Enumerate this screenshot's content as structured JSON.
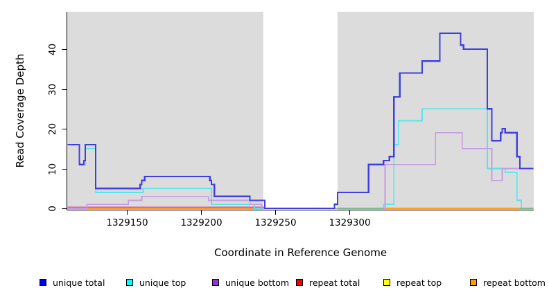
{
  "figure": {
    "xlabel": "Coordinate in Reference Genome",
    "ylabel": "Read Coverage Depth"
  },
  "chart_data": {
    "type": "line",
    "subtype": "step-coverage-pileup",
    "title": "",
    "xlabel": "Coordinate in Reference Genome",
    "ylabel": "Read Coverage Depth",
    "xlim": [
      1329110,
      1329424
    ],
    "ylim": [
      0,
      49
    ],
    "grid": false,
    "legend_position": "bottom",
    "panel_bg": "#dcdcdc",
    "outer_bg": "#ffffff",
    "axis_color": "#000000",
    "no_data_region": {
      "from": 1329242,
      "to": 1329292,
      "fill": "#ffffff"
    },
    "x_ticks": [
      {
        "label": "1329150",
        "coord": 1329150
      },
      {
        "label": "1329200",
        "coord": 1329200
      },
      {
        "label": "1329250",
        "coord": 1329250
      },
      {
        "label": "1329300",
        "coord": 1329300
      }
    ],
    "y_ticks": [
      {
        "label": "0",
        "value": 0
      },
      {
        "label": "10",
        "value": 10
      },
      {
        "label": "20",
        "value": 20
      },
      {
        "label": "30",
        "value": 30
      },
      {
        "label": "40",
        "value": 40
      }
    ],
    "series": [
      {
        "name": "unique total",
        "line_color": "#3f3fe0",
        "width": 2.2,
        "draw_index": 6,
        "steps": [
          [
            1329110,
            16
          ],
          [
            1329118,
            11
          ],
          [
            1329121,
            12
          ],
          [
            1329122,
            16
          ],
          [
            1329129,
            5
          ],
          [
            1329159,
            6
          ],
          [
            1329160,
            7
          ],
          [
            1329162,
            8
          ],
          [
            1329206,
            7
          ],
          [
            1329207,
            6
          ],
          [
            1329209,
            3
          ],
          [
            1329233,
            2
          ],
          [
            1329243,
            0
          ],
          [
            1329290,
            1
          ],
          [
            1329292,
            4
          ],
          [
            1329313,
            11
          ],
          [
            1329323,
            12
          ],
          [
            1329327,
            13
          ],
          [
            1329330,
            28
          ],
          [
            1329334,
            34
          ],
          [
            1329349,
            37
          ],
          [
            1329361,
            44
          ],
          [
            1329375,
            41
          ],
          [
            1329377,
            40
          ],
          [
            1329393,
            25
          ],
          [
            1329396,
            17
          ],
          [
            1329402,
            19
          ],
          [
            1329403,
            20
          ],
          [
            1329405,
            19
          ],
          [
            1329413,
            13
          ],
          [
            1329415,
            10
          ],
          [
            1329424,
            10
          ]
        ]
      },
      {
        "name": "unique top",
        "line_color": "#55e5ea",
        "width": 1.7,
        "draw_index": 4,
        "steps": [
          [
            1329110,
            16
          ],
          [
            1329118,
            11
          ],
          [
            1329122,
            15
          ],
          [
            1329129,
            4
          ],
          [
            1329161,
            5
          ],
          [
            1329207,
            1
          ],
          [
            1329236,
            0
          ],
          [
            1329323,
            1
          ],
          [
            1329330,
            16
          ],
          [
            1329333,
            22
          ],
          [
            1329349,
            25
          ],
          [
            1329393,
            10
          ],
          [
            1329405,
            9
          ],
          [
            1329413,
            2
          ],
          [
            1329416,
            0
          ],
          [
            1329424,
            0
          ]
        ]
      },
      {
        "name": "unique bottom",
        "line_color": "#c59ce2",
        "width": 1.7,
        "draw_index": 5,
        "steps": [
          [
            1329110,
            0
          ],
          [
            1329123,
            1
          ],
          [
            1329151,
            2
          ],
          [
            1329160,
            3
          ],
          [
            1329205,
            2
          ],
          [
            1329233,
            1
          ],
          [
            1329241,
            0
          ],
          [
            1329324,
            11
          ],
          [
            1329358,
            19
          ],
          [
            1329376,
            15
          ],
          [
            1329396,
            7
          ],
          [
            1329403,
            10
          ],
          [
            1329424,
            10
          ]
        ]
      },
      {
        "name": "repeat total",
        "line_color": "#df5f9f",
        "width": 1.6,
        "draw_index": 3,
        "dy": -1.5,
        "steps": [
          [
            1329110,
            0
          ],
          [
            1329243,
            0
          ]
        ]
      },
      {
        "name": "repeat top",
        "line_color": "#f5e935",
        "width": 1.6,
        "draw_index": 1,
        "steps": [
          [
            1329122,
            0
          ],
          [
            1329424,
            0
          ]
        ]
      },
      {
        "name": "repeat bottom",
        "line_color": "#ff9d1f",
        "width": 2.0,
        "draw_index": 2,
        "steps": [
          [
            1329122,
            0
          ],
          [
            1329424,
            0
          ]
        ]
      }
    ],
    "baseline_overlays": [
      {
        "color": "#7cbb8c",
        "from": 1329292,
        "to": 1329323,
        "width": 2.0
      },
      {
        "color": "#7cbb8c",
        "from": 1329415,
        "to": 1329424,
        "width": 2.0
      }
    ],
    "legend": {
      "swatch_border": "#000000",
      "items": [
        {
          "label": "unique total",
          "color": "#0000f0"
        },
        {
          "label": "unique top",
          "color": "#00ffff"
        },
        {
          "label": "unique bottom",
          "color": "#9b30d2"
        },
        {
          "label": "repeat total",
          "color": "#ee0000"
        },
        {
          "label": "repeat top",
          "color": "#ffff00"
        },
        {
          "label": "repeat bottom",
          "color": "#ff9d00"
        }
      ]
    }
  }
}
